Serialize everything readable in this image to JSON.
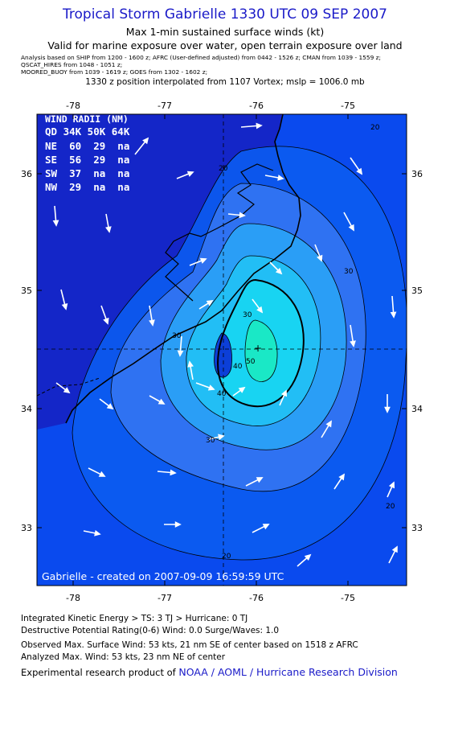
{
  "header": {
    "title": "Tropical Storm Gabrielle 1330 UTC 09 SEP 2007",
    "subtitle": "Max 1-min sustained surface winds (kt)",
    "valid_line": "Valid for marine exposure over water, open terrain exposure over land",
    "analysis_line1": "Analysis based on  SHIP from 1200 - 1600 z;  AFRC (User-defined adjusted) from 0442 - 1526 z;  CMAN from 1039 - 1559 z;",
    "analysis_line2": "QSCAT_HIRES from 1048 - 1051 z;",
    "analysis_line3": "MOORED_BUOY from 1039 - 1619 z;  GOES from 1302 - 1602 z;",
    "position_line": "1330 z position interpolated from 1107 Vortex; mslp = 1006.0 mb"
  },
  "map": {
    "lon_ticks": [
      "-78",
      "-77",
      "-76",
      "-75"
    ],
    "lat_ticks": [
      "36",
      "35",
      "34",
      "33"
    ],
    "contour_labels": [
      "20",
      "20",
      "20",
      "20",
      "30",
      "30",
      "30",
      "30",
      "40",
      "40",
      "50"
    ],
    "wind_radii": {
      "title": "WIND RADII (NM)",
      "header": "QD 34K 50K 64K",
      "rows": [
        "NE  60  29  na",
        "SE  56  29  na",
        "SW  37  na  na",
        "NW  29  na  na"
      ]
    },
    "credit": "Gabrielle - created on 2007-09-09 16:59:59 UTC",
    "colors": {
      "ocean": "#0a4aee",
      "land": "#1426c8",
      "shade1": "#2f72f2",
      "shade2": "#2aa0f4",
      "shade3": "#18cdf4",
      "core": "#1ae8c6",
      "arrow": "#ffffff",
      "title": "#1a1ac8"
    }
  },
  "footer": {
    "ike_line": "Integrated Kinetic Energy > TS: 3 TJ   > Hurricane: 0 TJ",
    "dp_line": "Destructive Potential Rating(0-6)   Wind: 0.0 Surge/Waves: 1.0",
    "observed_line": "Observed Max. Surface Wind: 53 kts, 21 nm SE of center based on 1518 z AFRC",
    "analyzed_line": "Analyzed Max. Wind: 53 kts, 23 nm NE of center",
    "product_prefix": "Experimental research product of ",
    "product_org": "NOAA / AOML / Hurricane Research Division"
  }
}
